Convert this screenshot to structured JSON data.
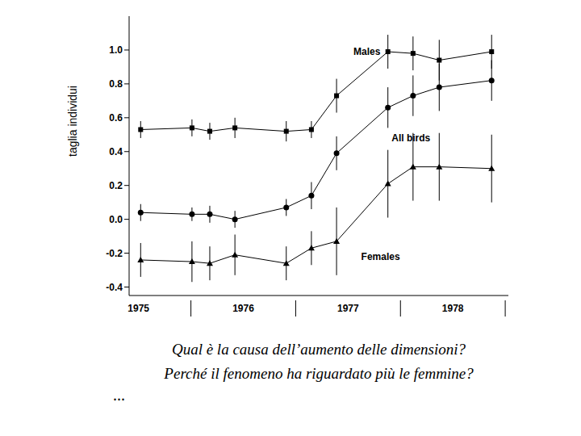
{
  "chart_data": {
    "type": "line",
    "y_label": "taglia individui",
    "x": [
      1975.52,
      1976.01,
      1976.18,
      1976.42,
      1976.91,
      1977.15,
      1977.39,
      1977.88,
      1978.12,
      1978.37,
      1978.87
    ],
    "xlim": [
      1975.41,
      1979.03
    ],
    "xticks": [
      {
        "value": 1975.5,
        "label": "1975"
      },
      {
        "value": 1976.5,
        "label": "1976"
      },
      {
        "value": 1977.5,
        "label": "1977"
      },
      {
        "value": 1978.5,
        "label": "1978"
      }
    ],
    "ylim": [
      -0.45,
      1.2
    ],
    "yticks": [
      -0.4,
      -0.2,
      {
        "value": 0,
        "label": "0.0"
      },
      0.2,
      0.4,
      0.6,
      0.8,
      {
        "value": 1,
        "label": "1.0"
      }
    ],
    "grid": false,
    "series": [
      {
        "name": "Males",
        "color": "#000000",
        "marker": "square",
        "label_x": 1977.68,
        "label_y": 0.99,
        "values": [
          0.53,
          0.54,
          0.52,
          0.54,
          0.52,
          0.53,
          0.73,
          0.99,
          0.98,
          0.94,
          0.99
        ],
        "errors": [
          0.05,
          0.05,
          0.05,
          0.06,
          0.06,
          0.05,
          0.1,
          0.1,
          0.1,
          0.12,
          0.1
        ]
      },
      {
        "name": "All birds",
        "color": "#000000",
        "marker": "circle",
        "label_x": 1978.1,
        "label_y": 0.48,
        "values": [
          0.04,
          0.03,
          0.03,
          0.0,
          0.07,
          0.14,
          0.39,
          0.66,
          0.73,
          0.78,
          0.82
        ],
        "errors": [
          0.05,
          0.04,
          0.05,
          0.05,
          0.05,
          0.08,
          0.1,
          0.12,
          0.12,
          0.14,
          0.12
        ]
      },
      {
        "name": "Females",
        "color": "#000000",
        "marker": "triangle",
        "label_x": 1977.81,
        "label_y": -0.22,
        "values": [
          -0.24,
          -0.25,
          -0.26,
          -0.21,
          -0.26,
          -0.17,
          -0.13,
          0.21,
          0.31,
          0.31,
          0.3
        ],
        "errors": [
          0.1,
          0.12,
          0.1,
          0.12,
          0.1,
          0.1,
          0.2,
          0.2,
          0.2,
          0.2,
          0.2
        ]
      }
    ],
    "annotations": [
      "Qual è la causa dell’aumento delle dimensioni?",
      "Perché il fenomeno ha riguardato più le femmine?",
      "..."
    ]
  }
}
